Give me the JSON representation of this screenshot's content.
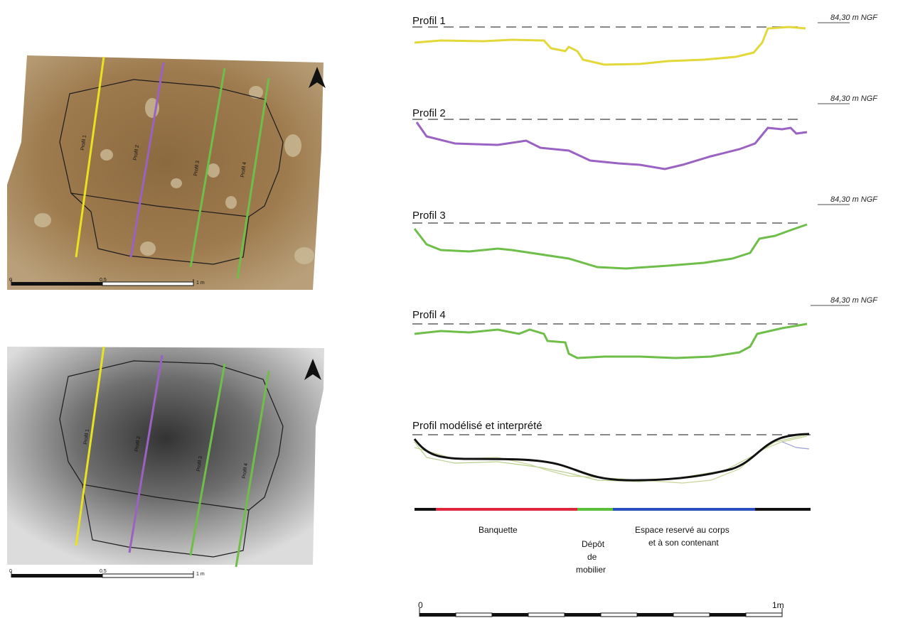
{
  "panels": {
    "photo": {
      "scale_labels": [
        "0",
        "0.5",
        "1 m"
      ],
      "profile_tags": [
        "Profil 1",
        "Profil 2",
        "Profil 3",
        "Profil 4"
      ],
      "compass": "north-arrow-icon"
    },
    "dem": {
      "scale_labels": [
        "0",
        "0.5",
        "1 m"
      ],
      "profile_tags": [
        "Profil 1",
        "Profil 2",
        "Profil 3",
        "Profil 4"
      ],
      "compass": "north-arrow-icon"
    }
  },
  "profiles": [
    {
      "title": "Profil 1",
      "elevation": "84,30 m NGF",
      "color": "#e3d83a"
    },
    {
      "title": "Profil 2",
      "elevation": "84,30 m NGF",
      "color": "#9a62c2"
    },
    {
      "title": "Profil 3",
      "elevation": "84,30 m NGF",
      "color": "#6fbe4a"
    },
    {
      "title": "Profil 4",
      "elevation": "84,30 m NGF",
      "color": "#6fbe4a"
    }
  ],
  "model": {
    "title": "Profil modélisé et interprété",
    "segments": [
      {
        "label_lines": [
          "Banquette"
        ],
        "color": "#e0263c"
      },
      {
        "label_lines": [
          "Dépôt",
          "de",
          "mobilier"
        ],
        "color": "#5cbf3a"
      },
      {
        "label_lines": [
          "Espace reservé au corps",
          "et à son contenant"
        ],
        "color": "#2c4fbf"
      }
    ]
  },
  "scale_bar": {
    "start": "0",
    "end": "1m"
  },
  "colors": {
    "yellow": "#e3d83a",
    "purple": "#9a62c2",
    "green": "#6fbe4a",
    "banquette": "#e0263c",
    "depot": "#5cbf3a",
    "espace": "#2c4fbf"
  }
}
